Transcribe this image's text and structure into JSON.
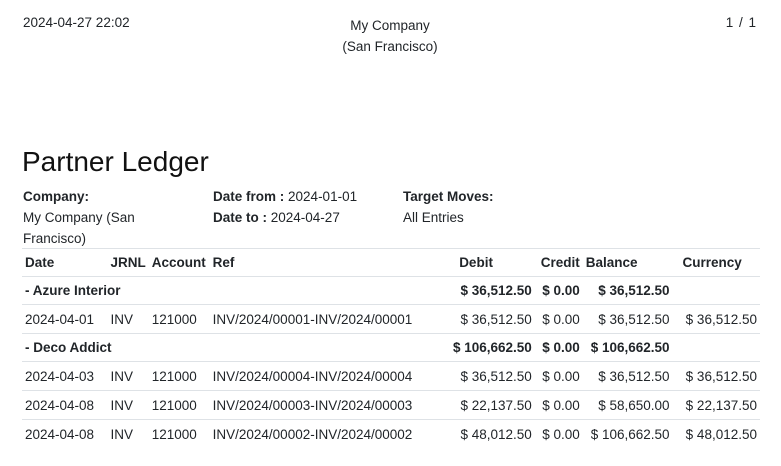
{
  "header": {
    "timestamp": "2024-04-27 22:02",
    "company_line1": "My Company",
    "company_line2": "(San Francisco)",
    "page": "1 / 1"
  },
  "title": "Partner Ledger",
  "info": {
    "company_label": "Company:",
    "company_value": "My Company (San Francisco)",
    "date_from_label": "Date from :",
    "date_from_value": "2024-01-01",
    "date_to_label": "Date to :",
    "date_to_value": "2024-04-27",
    "target_label": "Target Moves:",
    "target_value": "All Entries"
  },
  "columns": {
    "date": "Date",
    "jrnl": "JRNL",
    "account": "Account",
    "ref": "Ref",
    "debit": "Debit",
    "credit": "Credit",
    "balance": "Balance",
    "currency": "Currency"
  },
  "rows": [
    {
      "kind": "partner",
      "label": "- Azure Interior",
      "debit": "$ 36,512.50",
      "credit": "$ 0.00",
      "balance": "$ 36,512.50"
    },
    {
      "kind": "line",
      "date": "2024-04-01",
      "jrnl": "INV",
      "account": "121000",
      "ref": "INV/2024/00001-INV/2024/00001",
      "debit": "$ 36,512.50",
      "credit": "$ 0.00",
      "balance": "$ 36,512.50",
      "currency": "$ 36,512.50"
    },
    {
      "kind": "partner",
      "label": "- Deco Addict",
      "debit": "$ 106,662.50",
      "credit": "$ 0.00",
      "balance": "$ 106,662.50"
    },
    {
      "kind": "line",
      "date": "2024-04-03",
      "jrnl": "INV",
      "account": "121000",
      "ref": "INV/2024/00004-INV/2024/00004",
      "debit": "$ 36,512.50",
      "credit": "$ 0.00",
      "balance": "$ 36,512.50",
      "currency": "$ 36,512.50"
    },
    {
      "kind": "line",
      "date": "2024-04-08",
      "jrnl": "INV",
      "account": "121000",
      "ref": "INV/2024/00003-INV/2024/00003",
      "debit": "$ 22,137.50",
      "credit": "$ 0.00",
      "balance": "$ 58,650.00",
      "currency": "$ 22,137.50"
    },
    {
      "kind": "line",
      "date": "2024-04-08",
      "jrnl": "INV",
      "account": "121000",
      "ref": "INV/2024/00002-INV/2024/00002",
      "debit": "$ 48,012.50",
      "credit": "$ 0.00",
      "balance": "$ 106,662.50",
      "currency": "$ 48,012.50"
    }
  ]
}
